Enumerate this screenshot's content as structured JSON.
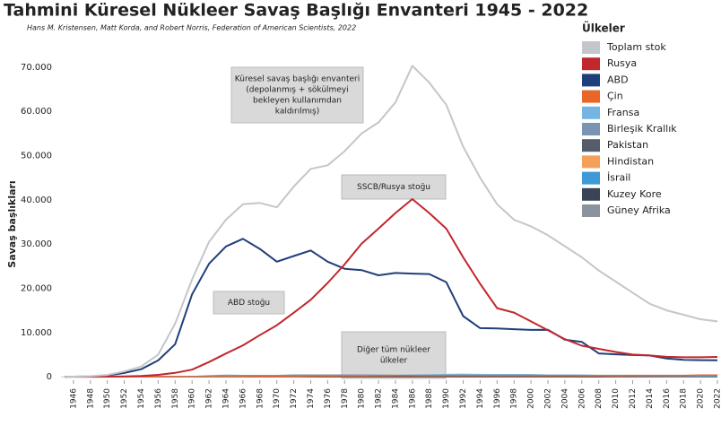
{
  "chart_data": {
    "type": "line",
    "title": "Tahmini Küresel Nükleer Savaş Başlığı Envanteri  1945 - 2022",
    "subtitle": "Hans M. Kristensen, Matt Korda, and Robert Norris, Federation of American Scientists, 2022",
    "y_label": "Savaş başlıkları",
    "legend_title": "Ülkeler",
    "legend_position": "right",
    "annotations": [
      {
        "lines": [
          "Küresel savaş başlığı envanteri",
          "(depolanmış + sökülmeyi",
          "bekleyen kullanımdan",
          "kaldırılmış)"
        ]
      },
      {
        "lines": [
          "SSCB/Rusya stoğu"
        ]
      },
      {
        "lines": [
          "ABD stoğu"
        ]
      },
      {
        "lines": [
          "Diğer tüm nükleer",
          "ülkeler"
        ]
      }
    ],
    "xlim": [
      1944,
      2022
    ],
    "ylim": [
      -1000,
      72000
    ],
    "xticks": [
      1946,
      1948,
      1950,
      1952,
      1954,
      1956,
      1958,
      1960,
      1962,
      1964,
      1966,
      1968,
      1970,
      1972,
      1974,
      1976,
      1978,
      1980,
      1982,
      1984,
      1986,
      1988,
      1990,
      1992,
      1994,
      1996,
      1998,
      2000,
      2002,
      2004,
      2006,
      2008,
      2010,
      2012,
      2014,
      2016,
      2018,
      2020,
      2022
    ],
    "yticks": [
      {
        "value": 0,
        "label": "0"
      },
      {
        "value": 10000,
        "label": "10.000"
      },
      {
        "value": 20000,
        "label": "20.000"
      },
      {
        "value": 30000,
        "label": "30.000"
      },
      {
        "value": 40000,
        "label": "40.000"
      },
      {
        "value": 50000,
        "label": "50.000"
      },
      {
        "value": 60000,
        "label": "60.000"
      },
      {
        "value": 70000,
        "label": "70.000"
      }
    ],
    "x": [
      1945,
      1946,
      1948,
      1950,
      1952,
      1954,
      1956,
      1958,
      1960,
      1962,
      1964,
      1966,
      1968,
      1970,
      1972,
      1974,
      1976,
      1978,
      1980,
      1982,
      1984,
      1986,
      1988,
      1990,
      1992,
      1994,
      1996,
      1998,
      2000,
      2002,
      2004,
      2006,
      2008,
      2010,
      2012,
      2014,
      2016,
      2018,
      2020,
      2022
    ],
    "series": [
      {
        "name": "Toplam stok",
        "color": "#c3c6cb",
        "values": [
          2,
          9,
          110,
          400,
          1200,
          2300,
          5000,
          12000,
          22000,
          30500,
          35500,
          39000,
          39300,
          38300,
          43000,
          47000,
          47800,
          51000,
          55000,
          57500,
          62000,
          70300,
          66500,
          61500,
          52000,
          45000,
          39000,
          35500,
          34000,
          32000,
          29500,
          27000,
          24000,
          21500,
          19000,
          16500,
          15000,
          14000,
          13000,
          12500
        ]
      },
      {
        "name": "Rusya",
        "color": "#c1272d",
        "values": [
          0,
          0,
          0,
          5,
          50,
          150,
          426,
          869,
          1605,
          3322,
          5242,
          7089,
          9395,
          11643,
          14478,
          17385,
          21205,
          25393,
          30062,
          33486,
          37000,
          40159,
          37000,
          33500,
          27000,
          21000,
          15500,
          14500,
          12500,
          10500,
          8500,
          7000,
          6300,
          5600,
          5000,
          4800,
          4500,
          4400,
          4400,
          4477
        ]
      },
      {
        "name": "ABD",
        "color": "#1f3f7a",
        "values": [
          2,
          9,
          50,
          299,
          841,
          1703,
          3692,
          7345,
          18638,
          25540,
          29463,
          31175,
          28884,
          26008,
          27296,
          28537,
          26000,
          24418,
          24104,
          22937,
          23459,
          23317,
          23205,
          21392,
          13708,
          10979,
          10904,
          10732,
          10577,
          10600,
          8360,
          7853,
          5273,
          5066,
          4900,
          4800,
          4100,
          3800,
          3750,
          3708
        ]
      },
      {
        "name": "Çin",
        "color": "#e8662a",
        "values": [
          0,
          0,
          0,
          0,
          0,
          0,
          0,
          0,
          0,
          0,
          1,
          20,
          75,
          75,
          130,
          170,
          185,
          225,
          205,
          240,
          250,
          250,
          235,
          230,
          235,
          235,
          232,
          232,
          232,
          232,
          235,
          235,
          240,
          240,
          250,
          260,
          270,
          280,
          350,
          350
        ]
      },
      {
        "name": "Fransa",
        "color": "#74b5e2",
        "values": [
          0,
          0,
          0,
          0,
          0,
          0,
          0,
          0,
          0,
          0,
          4,
          36,
          36,
          36,
          45,
          145,
          188,
          235,
          250,
          275,
          280,
          355,
          420,
          505,
          540,
          510,
          450,
          450,
          470,
          350,
          350,
          350,
          300,
          300,
          300,
          300,
          300,
          300,
          290,
          290
        ]
      },
      {
        "name": "Birleşik Krallık",
        "color": "#7b94b3",
        "values": [
          0,
          0,
          0,
          0,
          0,
          10,
          15,
          20,
          30,
          205,
          310,
          270,
          280,
          280,
          350,
          350,
          350,
          350,
          350,
          335,
          320,
          300,
          300,
          300,
          300,
          250,
          300,
          280,
          280,
          280,
          280,
          225,
          225,
          225,
          225,
          215,
          215,
          215,
          195,
          225
        ]
      },
      {
        "name": "Pakistan",
        "color": "#555d6b",
        "values": [
          0,
          0,
          0,
          0,
          0,
          0,
          0,
          0,
          0,
          0,
          0,
          0,
          0,
          0,
          0,
          0,
          0,
          0,
          0,
          0,
          0,
          0,
          0,
          0,
          0,
          0,
          0,
          5,
          20,
          30,
          40,
          50,
          70,
          90,
          100,
          120,
          140,
          150,
          160,
          165
        ]
      },
      {
        "name": "Hindistan",
        "color": "#f5a05a",
        "values": [
          0,
          0,
          0,
          0,
          0,
          0,
          0,
          0,
          0,
          0,
          0,
          0,
          0,
          0,
          0,
          0,
          0,
          0,
          0,
          0,
          0,
          0,
          0,
          0,
          0,
          0,
          0,
          10,
          20,
          30,
          40,
          50,
          60,
          70,
          90,
          110,
          120,
          130,
          150,
          160
        ]
      },
      {
        "name": "İsrail",
        "color": "#3d9ad6",
        "values": [
          0,
          0,
          0,
          0,
          0,
          0,
          0,
          0,
          0,
          0,
          0,
          0,
          2,
          8,
          12,
          18,
          24,
          30,
          35,
          42,
          50,
          60,
          62,
          64,
          66,
          68,
          70,
          72,
          75,
          78,
          80,
          80,
          80,
          80,
          80,
          80,
          80,
          90,
          90,
          90
        ]
      },
      {
        "name": "Kuzey Kore",
        "color": "#3a4456",
        "values": [
          0,
          0,
          0,
          0,
          0,
          0,
          0,
          0,
          0,
          0,
          0,
          0,
          0,
          0,
          0,
          0,
          0,
          0,
          0,
          0,
          0,
          0,
          0,
          0,
          0,
          0,
          0,
          0,
          0,
          0,
          0,
          0,
          2,
          4,
          6,
          8,
          10,
          15,
          20,
          20
        ]
      },
      {
        "name": "Güney Afrika",
        "color": "#8a939e",
        "values": [
          0,
          0,
          0,
          0,
          0,
          0,
          0,
          0,
          0,
          0,
          0,
          0,
          0,
          0,
          0,
          0,
          0,
          0,
          0,
          1,
          2,
          3,
          5,
          6,
          0,
          0,
          0,
          0,
          0,
          0,
          0,
          0,
          0,
          0,
          0,
          0,
          0,
          0,
          0,
          0
        ]
      }
    ]
  }
}
